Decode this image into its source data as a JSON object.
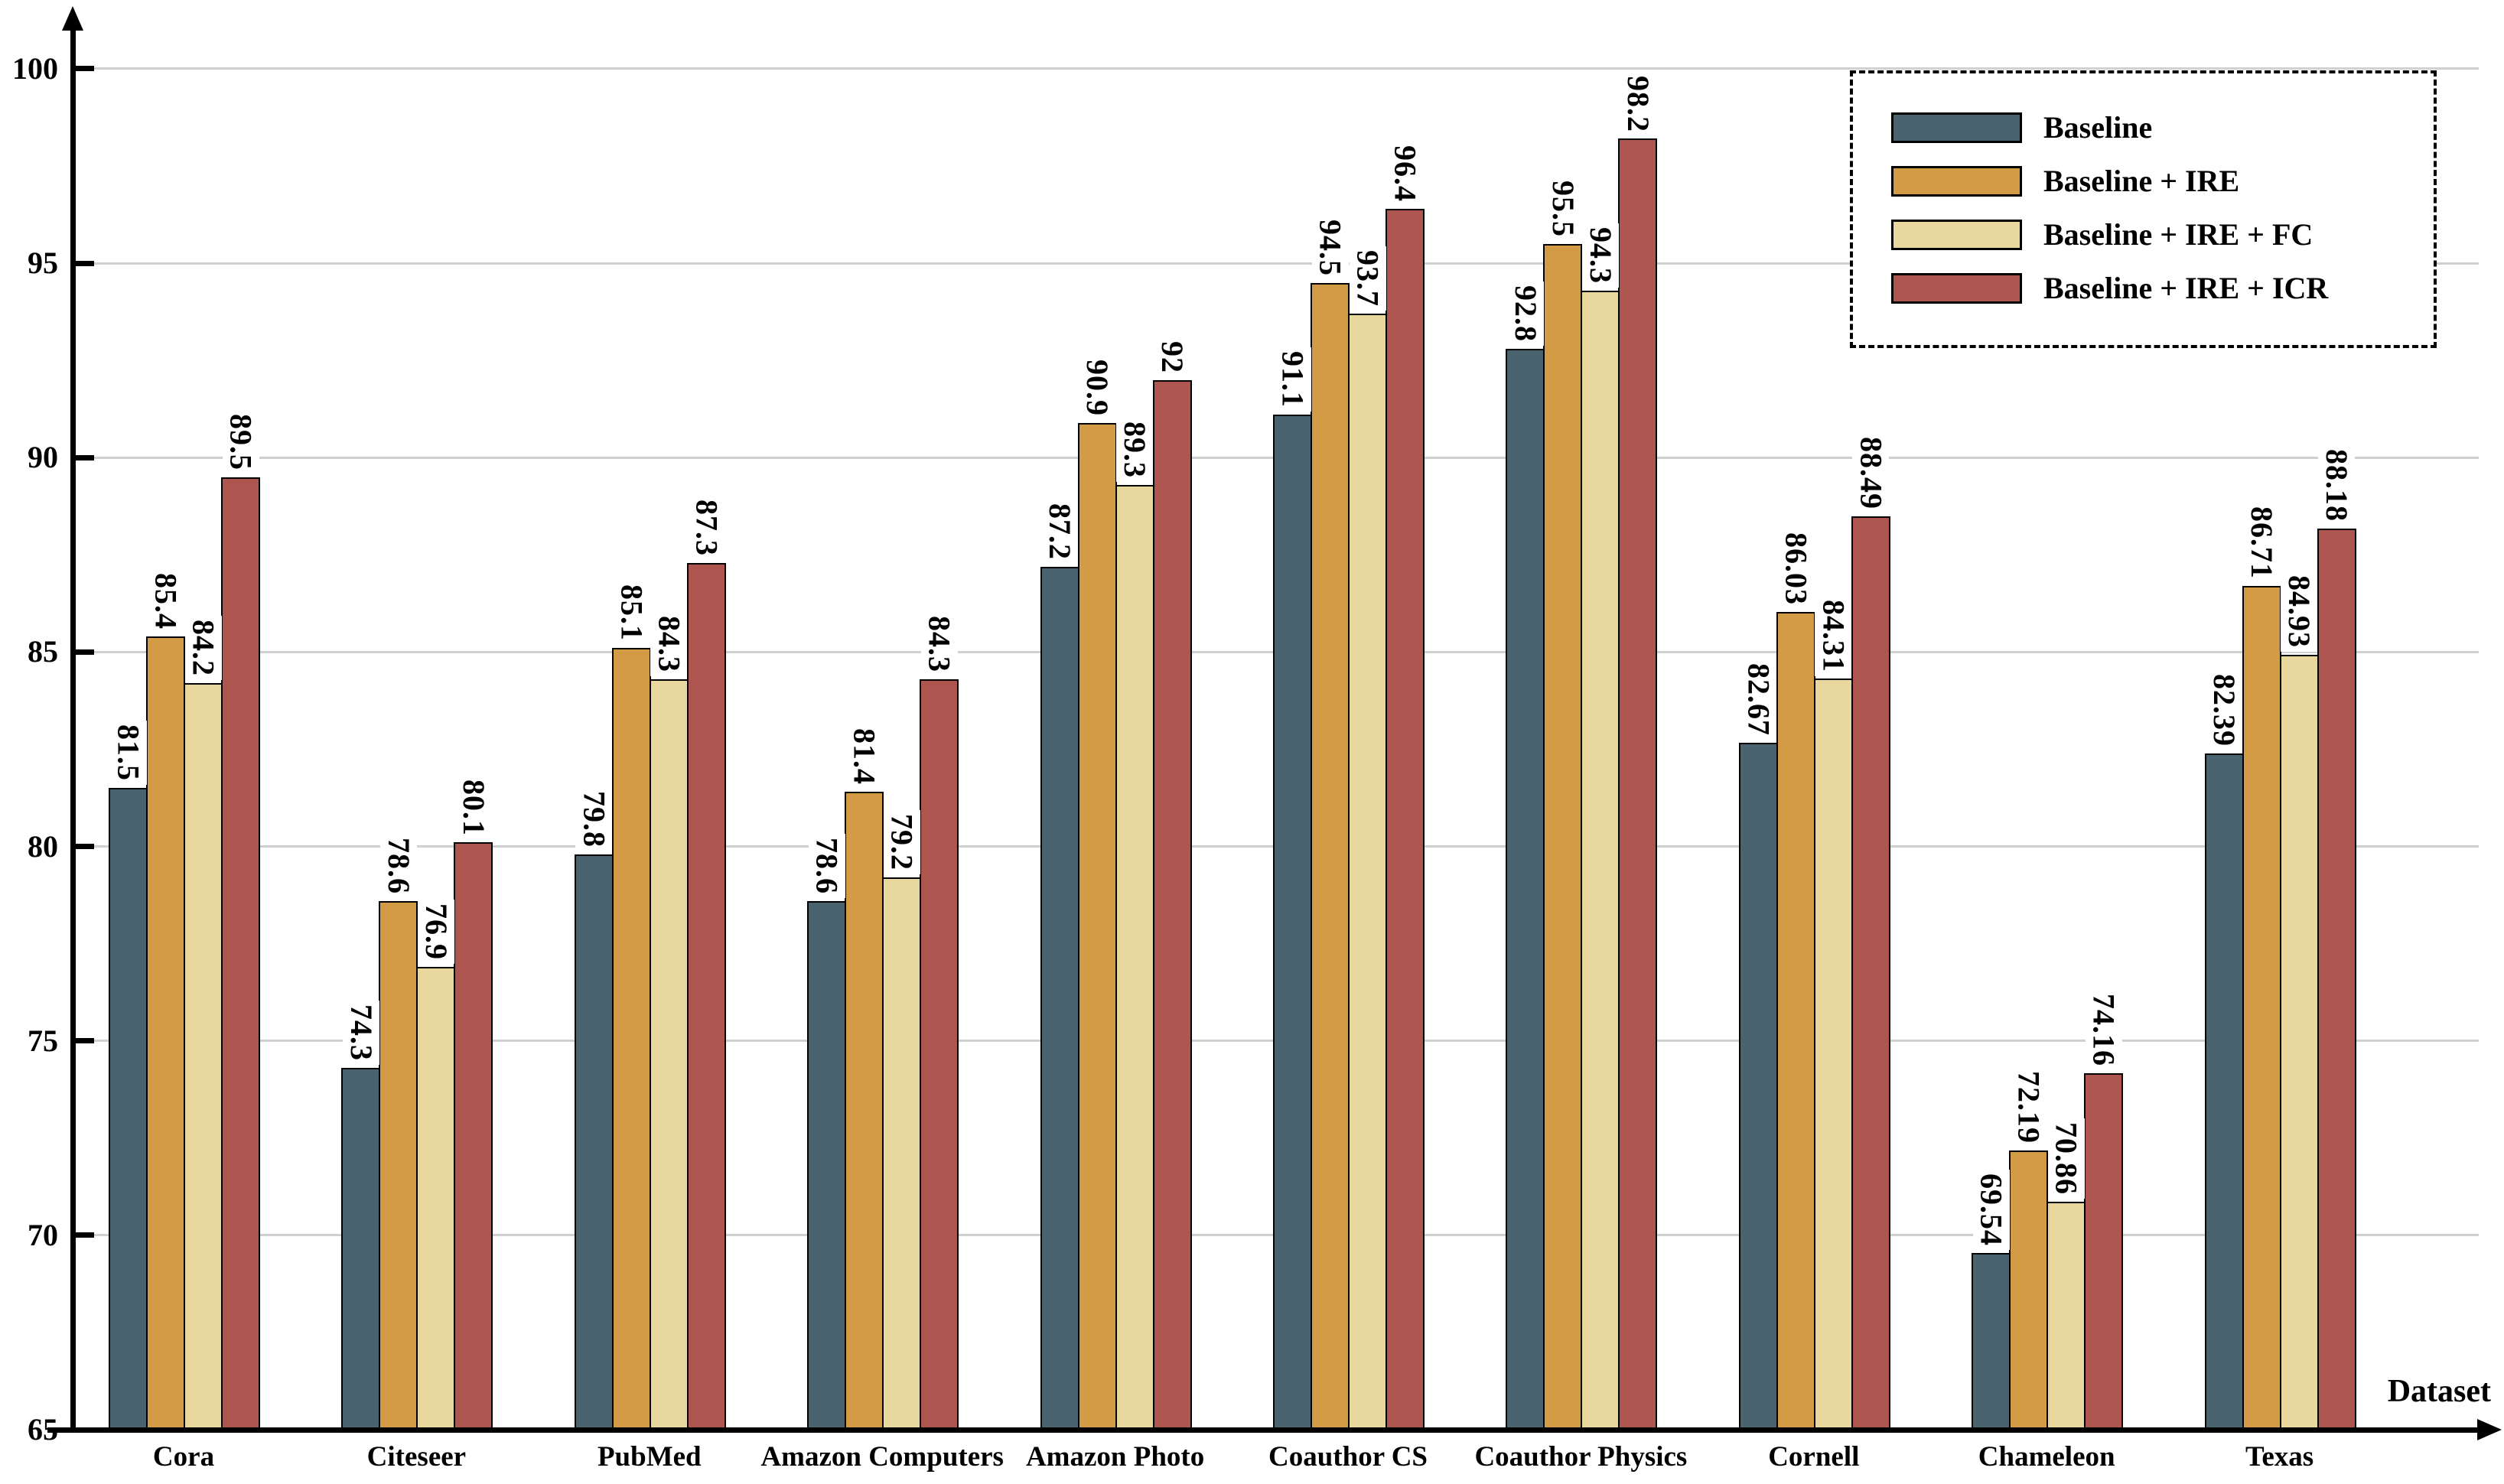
{
  "chart_data": {
    "type": "bar",
    "title": "",
    "xlabel": "Dataset",
    "ylabel": "",
    "ylim": [
      65,
      100
    ],
    "yticks": [
      65,
      70,
      75,
      80,
      85,
      90,
      95,
      100
    ],
    "grid": true,
    "legend_position": "top-right",
    "categories": [
      "Cora",
      "Citeseer",
      "PubMed",
      "Amazon Computers",
      "Amazon Photo",
      "Coauthor CS",
      "Coauthor Physics",
      "Cornell",
      "Chameleon",
      "Texas"
    ],
    "series": [
      {
        "name": "Baseline",
        "color": "#49646e",
        "values": [
          81.5,
          74.3,
          79.8,
          78.6,
          87.2,
          91.1,
          92.8,
          82.67,
          69.54,
          82.39
        ],
        "labels": [
          "81.5",
          "74.3",
          "79.8",
          "78.6",
          "87.2",
          "91.1",
          "92.8",
          "82.67",
          "69.54",
          "82.39"
        ]
      },
      {
        "name": "Baseline + IRE",
        "color": "#d49b47",
        "values": [
          85.4,
          78.6,
          85.1,
          81.4,
          90.9,
          94.5,
          95.5,
          86.03,
          72.19,
          86.71
        ],
        "labels": [
          "85.4",
          "78.6",
          "85.1",
          "81.4",
          "90.9",
          "94.5",
          "95.5",
          "86.03",
          "72.19",
          "86.71"
        ]
      },
      {
        "name": "Baseline + IRE + FC",
        "color": "#e9d89e",
        "values": [
          84.2,
          76.9,
          84.3,
          79.2,
          89.3,
          93.7,
          94.3,
          84.31,
          70.86,
          84.93
        ],
        "labels": [
          "84.2",
          "76.9",
          "84.3",
          "79.2",
          "89.3",
          "93.7",
          "94.3",
          "84.31",
          "70.86",
          "84.93"
        ]
      },
      {
        "name": "Baseline + IRE + ICR",
        "color": "#ad564f",
        "values": [
          89.5,
          80.1,
          87.3,
          84.3,
          92,
          96.4,
          98.2,
          88.49,
          74.16,
          88.18
        ],
        "labels": [
          "89.5",
          "80.1",
          "87.3",
          "84.3",
          "92",
          "96.4",
          "98.2",
          "88.49",
          "74.16",
          "88.18"
        ]
      }
    ]
  },
  "colors": {
    "background": "#ffffff",
    "axis": "#000000",
    "gridline": "#d0d0d0",
    "value_label_bg": "#ffffff",
    "text": "#000000"
  }
}
